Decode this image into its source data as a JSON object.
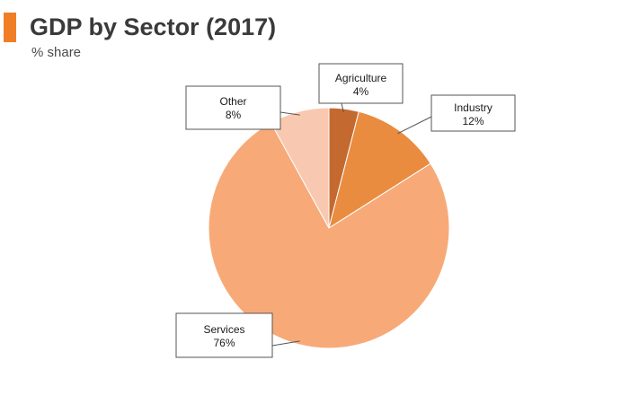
{
  "header": {
    "title": "GDP by Sector (2017)",
    "subtitle": "% share",
    "accent_color": "#f07e26"
  },
  "chart_data": {
    "type": "pie",
    "title": "GDP by Sector (2017)",
    "subtitle": "% share",
    "unit": "%",
    "start": "12 o'clock, clockwise",
    "slices": [
      {
        "label": "Agriculture",
        "value": 4,
        "value_label": "4%",
        "color": "#c46a30"
      },
      {
        "label": "Industry",
        "value": 12,
        "value_label": "12%",
        "color": "#e98c3f"
      },
      {
        "label": "Services",
        "value": 76,
        "value_label": "76%",
        "color": "#f7aa78"
      },
      {
        "label": "Other",
        "value": 8,
        "value_label": "8%",
        "color": "#f8c9b0"
      }
    ]
  }
}
